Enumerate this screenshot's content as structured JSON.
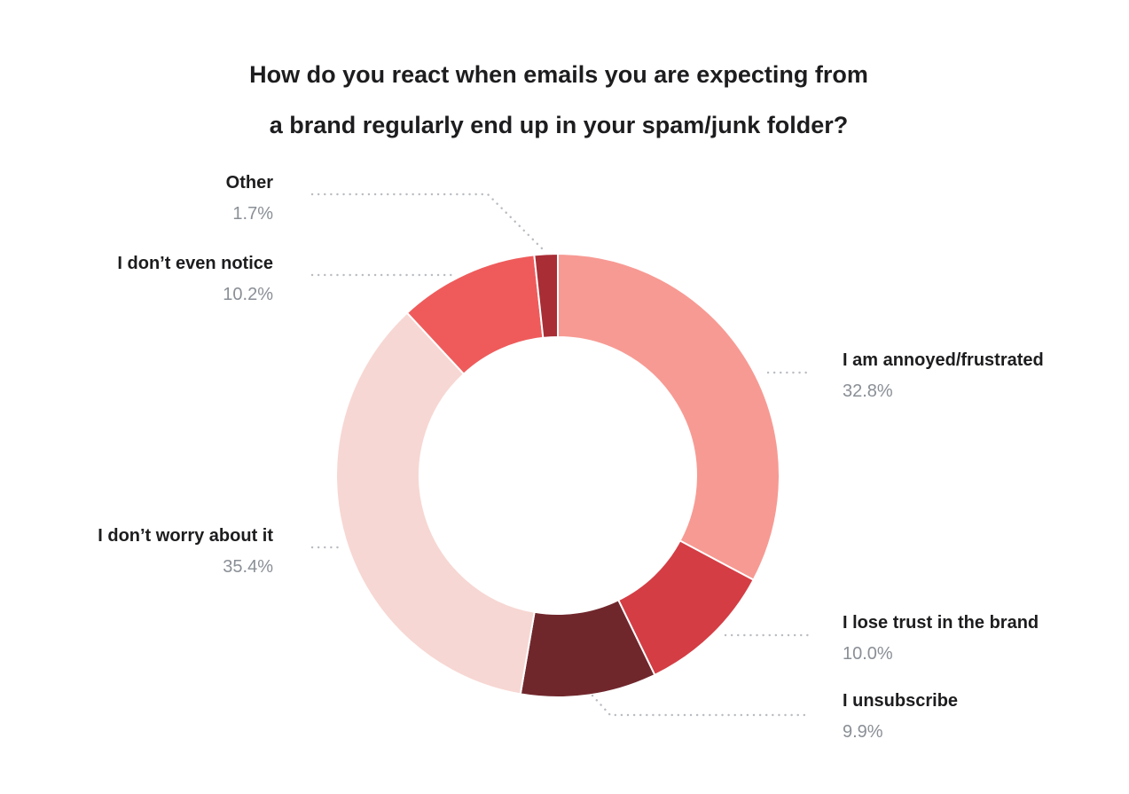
{
  "chart_data": {
    "type": "pie",
    "title": "How do you react when emails you are expecting from a brand regularly end up in your spam/junk folder?",
    "title_lines": [
      "How do you react when emails you are expecting from",
      "a brand regularly end up in your spam/junk folder?"
    ],
    "donut": true,
    "slices": [
      {
        "label": "I am annoyed/frustrated",
        "value": 32.8,
        "value_label": "32.8%",
        "color": "#f79a93"
      },
      {
        "label": "I lose trust in the brand",
        "value": 10.0,
        "value_label": "10.0%",
        "color": "#d43d44"
      },
      {
        "label": "I unsubscribe",
        "value": 9.9,
        "value_label": "9.9%",
        "color": "#70272c"
      },
      {
        "label": "I don’t worry about it",
        "value": 35.4,
        "value_label": "35.4%",
        "color": "#f7d7d3"
      },
      {
        "label": "I don’t even notice",
        "value": 10.2,
        "value_label": "10.2%",
        "color": "#ef5b5b"
      },
      {
        "label": "Other",
        "value": 1.7,
        "value_label": "1.7%",
        "color": "#a92d35"
      }
    ]
  }
}
